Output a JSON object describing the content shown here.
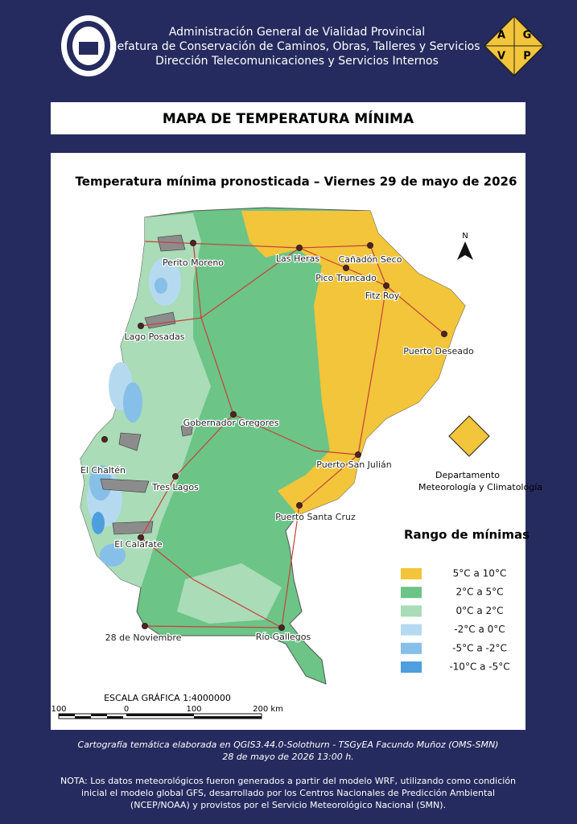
{
  "header": {
    "lines": [
      "Administración General de Vialidad Provincial",
      "Jefatura de Conservación de Caminos, Obras, Talleres y Servicios",
      "Dirección Telecomunicaciones y Servicios Internos"
    ],
    "logo_letters": [
      "A",
      "G",
      "V",
      "P"
    ]
  },
  "title": "MAPA DE TEMPERATURA MÍNIMA",
  "map": {
    "title": "Temperatura mínima pronosticada – Viernes 29 de mayo de 2026",
    "north": "N",
    "cities": [
      "Perito Moreno",
      "Las Heras",
      "Cañadón Seco",
      "Pico Truncado",
      "Fitz Roy",
      "Puerto Deseado",
      "Lago Posadas",
      "Gobernador Gregores",
      "El Chaltén",
      "Tres Lagos",
      "Puerto San Julián",
      "Puerto Santa Cruz",
      "El Calafate",
      "28 de Noviembre",
      "Río Gallegos"
    ],
    "department": [
      "Departamento",
      "Meteorología y Climatología"
    ],
    "legend": {
      "title": "Rango  de mínimas",
      "items": [
        {
          "label": "5°C a 10°C",
          "color": "#f2c53a"
        },
        {
          "label": "2°C a 5°C",
          "color": "#6cc487"
        },
        {
          "label": "0°C a 2°C",
          "color": "#a9dcb7"
        },
        {
          "label": "-2°C a 0°C",
          "color": "#b5daf0"
        },
        {
          "label": "-5°C a -2°C",
          "color": "#86bfe8"
        },
        {
          "label": "-10°C a -5°C",
          "color": "#4f9ede"
        }
      ]
    },
    "scale": {
      "label": "ESCALA GRÁFICA 1:4000000",
      "ticks": [
        "100",
        "0",
        "100",
        "200 km"
      ]
    }
  },
  "footer": {
    "credits": [
      "Cartografía temática elaborada en QGIS3.44.0-Solothurn - TSGyEA Facundo Muñoz (OMS-SMN)",
      "28 de mayo de 2026 13:00 h."
    ],
    "note": [
      "NOTA: Los datos meteorológicos fueron generados a partir del modelo WRF, utilizando como condición",
      "inicial el modelo global GFS, desarrollado por los Centros Nacionales de Predicción Ambiental",
      "(NCEP/NOAA) y provistos por el Servicio Meteorológico Nacional (SMN)."
    ]
  }
}
